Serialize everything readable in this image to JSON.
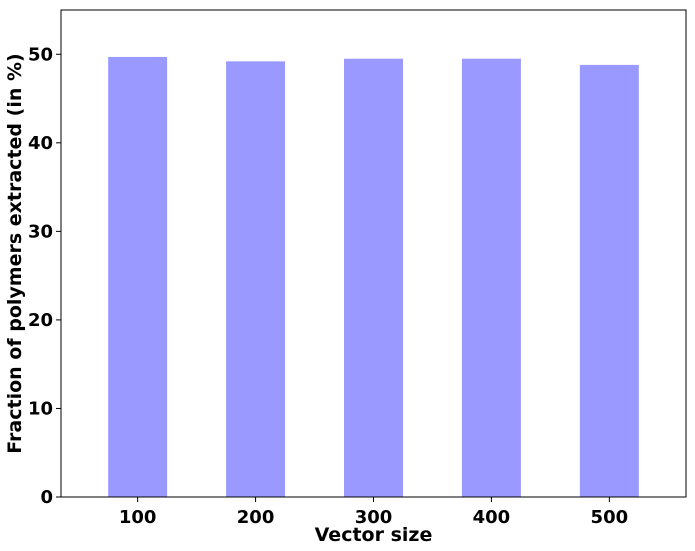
{
  "chart_data": {
    "type": "bar",
    "categories": [
      "100",
      "200",
      "300",
      "400",
      "500"
    ],
    "values": [
      49.7,
      49.2,
      49.5,
      49.5,
      48.8
    ],
    "xlabel": "Vector size",
    "ylabel": "Fraction of polymers extracted (in %)",
    "ylim": [
      0,
      55
    ],
    "yticks": [
      0,
      10,
      20,
      30,
      40,
      50
    ],
    "bar_color": "#9999ff",
    "grid": false,
    "legend": "none"
  }
}
